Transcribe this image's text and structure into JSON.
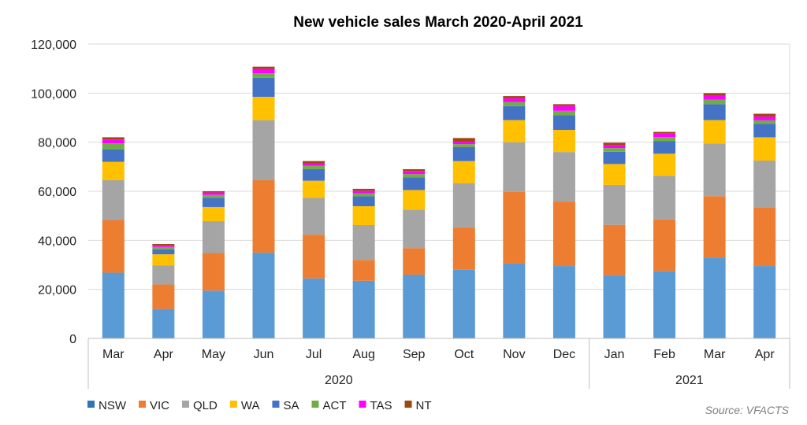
{
  "chart_data": {
    "type": "bar",
    "stacked": true,
    "title": "New vehicle sales March 2020-April 2021",
    "categories": [
      "Mar",
      "Apr",
      "May",
      "Jun",
      "Jul",
      "Aug",
      "Sep",
      "Oct",
      "Nov",
      "Dec",
      "Jan",
      "Feb",
      "Mar",
      "Apr"
    ],
    "category_groups": [
      {
        "label": "2020",
        "count": 10
      },
      {
        "label": "2021",
        "count": 4
      }
    ],
    "ylim": [
      0,
      120000
    ],
    "yticks": [
      0,
      20000,
      40000,
      60000,
      80000,
      100000,
      120000
    ],
    "ytick_labels": [
      "0",
      "20,000",
      "40,000",
      "60,000",
      "80,000",
      "100,000",
      "120,000"
    ],
    "grid": true,
    "legend_position": "bottom-left",
    "series": [
      {
        "name": "NSW",
        "color": "#5b9bd5",
        "legend_color": "#2e75b6",
        "values": [
          26800,
          12000,
          19500,
          35000,
          24500,
          23500,
          26000,
          28000,
          30500,
          29500,
          25800,
          27500,
          33000,
          29500
        ]
      },
      {
        "name": "VIC",
        "color": "#ed7d31",
        "values": [
          21500,
          10000,
          15300,
          29500,
          17800,
          8500,
          10800,
          17300,
          29200,
          26300,
          20500,
          21000,
          25000,
          24000
        ]
      },
      {
        "name": "QLD",
        "color": "#a5a5a5",
        "values": [
          16200,
          7800,
          13000,
          24500,
          15000,
          14200,
          15700,
          18000,
          20300,
          20200,
          16300,
          17800,
          21500,
          19000
        ]
      },
      {
        "name": "WA",
        "color": "#ffc000",
        "values": [
          7500,
          4500,
          5800,
          9500,
          7000,
          7700,
          8000,
          9000,
          9000,
          9000,
          8500,
          9000,
          9500,
          9500
        ]
      },
      {
        "name": "SA",
        "color": "#4472c4",
        "values": [
          5000,
          2000,
          3700,
          7800,
          4700,
          4000,
          5200,
          5700,
          5700,
          6000,
          5000,
          5200,
          6500,
          5500
        ]
      },
      {
        "name": "ACT",
        "color": "#70ad47",
        "values": [
          2500,
          1000,
          1200,
          1800,
          1400,
          1300,
          1300,
          1200,
          1700,
          1800,
          1500,
          1600,
          1800,
          1400
        ]
      },
      {
        "name": "TAS",
        "color": "#ff00ff",
        "values": [
          1600,
          600,
          1000,
          1800,
          1000,
          1000,
          1300,
          1000,
          1500,
          1900,
          1300,
          1400,
          1700,
          1600
        ]
      },
      {
        "name": "NT",
        "color": "#9e480e",
        "values": [
          900,
          600,
          500,
          900,
          900,
          800,
          700,
          1500,
          900,
          800,
          900,
          700,
          1000,
          1100
        ]
      }
    ]
  },
  "source_note": "Source: VFACTS"
}
